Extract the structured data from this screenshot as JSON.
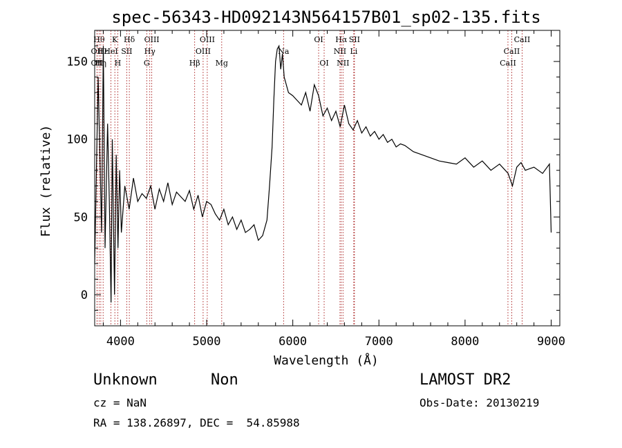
{
  "chart_data": {
    "type": "line",
    "title": "spec-56343-HD092143N564157B01_sp02-135.fits",
    "xlabel": "Wavelength (Å)",
    "ylabel": "Flux (relative)",
    "xlim": [
      3700,
      9100
    ],
    "ylim": [
      -20,
      170
    ],
    "xticks": [
      4000,
      5000,
      6000,
      7000,
      8000,
      9000
    ],
    "yticks": [
      0,
      50,
      100,
      150
    ],
    "grid": false,
    "series": [
      {
        "x": [
          3700,
          3740,
          3780,
          3800,
          3820,
          3850,
          3870,
          3890,
          3905,
          3930,
          3950,
          3970,
          3990,
          4010,
          4050,
          4100,
          4150,
          4200,
          4250,
          4300,
          4350,
          4400,
          4450,
          4500,
          4550,
          4600,
          4650,
          4700,
          4750,
          4800,
          4850,
          4900,
          4950,
          5000,
          5050,
          5100,
          5150,
          5200,
          5250,
          5300,
          5350,
          5400,
          5450,
          5500,
          5550,
          5600,
          5650,
          5700,
          5730,
          5760,
          5780,
          5800,
          5820,
          5840,
          5860,
          5880,
          5900,
          5950,
          6000,
          6050,
          6100,
          6150,
          6200,
          6250,
          6300,
          6350,
          6400,
          6450,
          6500,
          6550,
          6600,
          6650,
          6700,
          6750,
          6800,
          6850,
          6900,
          6950,
          7000,
          7050,
          7100,
          7150,
          7200,
          7250,
          7300,
          7400,
          7500,
          7600,
          7700,
          7800,
          7900,
          8000,
          8100,
          8200,
          8300,
          8400,
          8500,
          8550,
          8600,
          8650,
          8700,
          8800,
          8900,
          8980,
          9000
        ],
        "y": [
          20,
          140,
          40,
          160,
          30,
          110,
          60,
          -5,
          100,
          0,
          90,
          30,
          80,
          40,
          70,
          55,
          75,
          60,
          65,
          62,
          70,
          55,
          68,
          60,
          72,
          58,
          66,
          63,
          60,
          67,
          55,
          64,
          50,
          60,
          58,
          52,
          48,
          55,
          45,
          50,
          42,
          48,
          40,
          42,
          45,
          35,
          38,
          48,
          70,
          95,
          125,
          150,
          158,
          160,
          145,
          155,
          140,
          130,
          128,
          125,
          122,
          130,
          118,
          135,
          128,
          115,
          120,
          112,
          118,
          108,
          122,
          110,
          106,
          112,
          104,
          108,
          102,
          105,
          100,
          103,
          98,
          100,
          95,
          97,
          96,
          92,
          90,
          88,
          86,
          85,
          84,
          88,
          82,
          86,
          80,
          84,
          78,
          70,
          82,
          85,
          80,
          82,
          78,
          84,
          40
        ]
      }
    ],
    "annotations": [
      {
        "x": 3751,
        "label": "Hθ",
        "row": 1
      },
      {
        "x": 3727,
        "label": "OII",
        "row": 2
      },
      {
        "x": 3727,
        "label": "OII",
        "row": 3
      },
      {
        "x": 3771,
        "label": "Hη",
        "row": 3
      },
      {
        "x": 3798,
        "label": "Hε",
        "row": 2
      },
      {
        "x": 3934,
        "label": "K",
        "row": 1
      },
      {
        "x": 3968,
        "label": "H",
        "row": 3
      },
      {
        "x": 3889,
        "label": "HeI",
        "row": 2
      },
      {
        "x": 4102,
        "label": "Hδ",
        "row": 1
      },
      {
        "x": 4072,
        "label": "SII",
        "row": 2
      },
      {
        "x": 4363,
        "label": "OIII",
        "row": 1
      },
      {
        "x": 4340,
        "label": "Hγ",
        "row": 2
      },
      {
        "x": 4304,
        "label": "G",
        "row": 3
      },
      {
        "x": 4861,
        "label": "Hβ",
        "row": 3
      },
      {
        "x": 5007,
        "label": "OIII",
        "row": 1
      },
      {
        "x": 4959,
        "label": "OIII",
        "row": 2
      },
      {
        "x": 5175,
        "label": "Mg",
        "row": 3
      },
      {
        "x": 5893,
        "label": "Na",
        "row": 2
      },
      {
        "x": 6300,
        "label": "OI",
        "row": 1
      },
      {
        "x": 6364,
        "label": "OI",
        "row": 3
      },
      {
        "x": 6563,
        "label": "Hα",
        "row": 1
      },
      {
        "x": 6548,
        "label": "NII",
        "row": 2
      },
      {
        "x": 6583,
        "label": "NII",
        "row": 3
      },
      {
        "x": 6716,
        "label": "SII",
        "row": 1
      },
      {
        "x": 6708,
        "label": "Li",
        "row": 2
      },
      {
        "x": 8662,
        "label": "CaII",
        "row": 1
      },
      {
        "x": 8542,
        "label": "CaII",
        "row": 2
      },
      {
        "x": 8498,
        "label": "CaII",
        "row": 3
      }
    ]
  },
  "info": {
    "object_class": "Unknown",
    "subclass": "Non",
    "cz": "cz = NaN",
    "coords": "RA = 138.26897, DEC =  54.85988",
    "survey": "LAMOST DR2",
    "obs_date": "Obs-Date: 20130219"
  }
}
